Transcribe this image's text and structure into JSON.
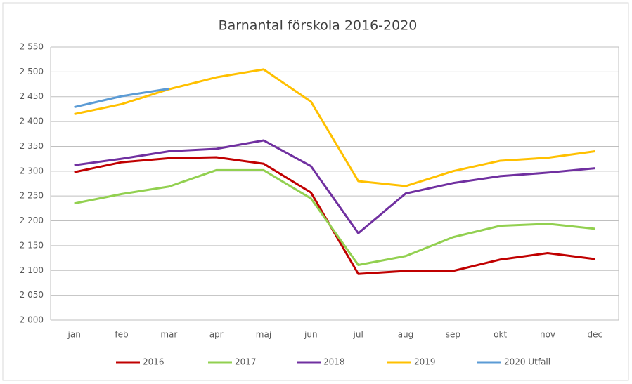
{
  "chart_data": {
    "type": "line",
    "title": "Barnantal förskola 2016-2020",
    "categories": [
      "jan",
      "feb",
      "mar",
      "apr",
      "maj",
      "jun",
      "jul",
      "aug",
      "sep",
      "okt",
      "nov",
      "dec"
    ],
    "series": [
      {
        "name": "2016",
        "color": "#c00000",
        "values": [
          2298,
          2318,
          2326,
          2328,
          2315,
          2257,
          2093,
          2099,
          2099,
          2122,
          2135,
          2123
        ]
      },
      {
        "name": "2017",
        "color": "#92d050",
        "values": [
          2235,
          2254,
          2269,
          2302,
          2302,
          2245,
          2111,
          2129,
          2167,
          2190,
          2194,
          2184
        ]
      },
      {
        "name": "2018",
        "color": "#7030a0",
        "values": [
          2312,
          2325,
          2340,
          2345,
          2362,
          2310,
          2175,
          2255,
          2276,
          2290,
          2297,
          2306
        ]
      },
      {
        "name": "2019",
        "color": "#ffc000",
        "values": [
          2415,
          2435,
          2465,
          2489,
          2505,
          2440,
          2280,
          2270,
          2300,
          2321,
          2327,
          2340
        ]
      },
      {
        "name": "2020 Utfall",
        "color": "#5b9bd5",
        "values": [
          2429,
          2451,
          2466,
          null,
          null,
          null,
          null,
          null,
          null,
          null,
          null,
          null
        ]
      }
    ],
    "ylim": [
      2000,
      2550
    ],
    "yticks": [
      {
        "value": 2000,
        "label": "2 000"
      },
      {
        "value": 2050,
        "label": "2 050"
      },
      {
        "value": 2100,
        "label": "2 100"
      },
      {
        "value": 2150,
        "label": "2 150"
      },
      {
        "value": 2200,
        "label": "2 200"
      },
      {
        "value": 2250,
        "label": "2 250"
      },
      {
        "value": 2300,
        "label": "2 300"
      },
      {
        "value": 2350,
        "label": "2 350"
      },
      {
        "value": 2400,
        "label": "2 400"
      },
      {
        "value": 2450,
        "label": "2 450"
      },
      {
        "value": 2500,
        "label": "2 500"
      },
      {
        "value": 2550,
        "label": "2 550"
      }
    ],
    "grid": true,
    "legend": "bottom"
  }
}
